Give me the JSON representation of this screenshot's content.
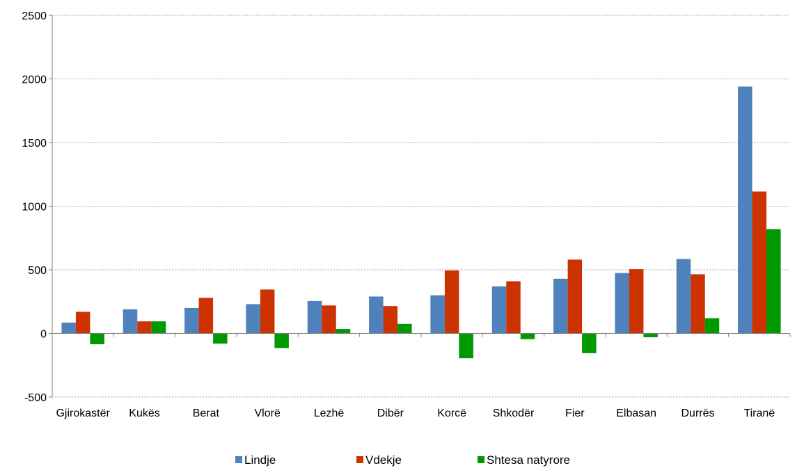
{
  "chart_data": {
    "type": "bar",
    "categories": [
      "Gjirokastër",
      "Kukës",
      "Berat",
      "Vlorë",
      "Lezhë",
      "Dibër",
      "Korcë",
      "Shkodër",
      "Fier",
      "Elbasan",
      "Durrës",
      "Tiranë"
    ],
    "series": [
      {
        "name": "Lindje",
        "color": "#4f81bd",
        "values": [
          85,
          190,
          200,
          230,
          255,
          290,
          300,
          370,
          430,
          475,
          585,
          1940
        ]
      },
      {
        "name": "Vdekje",
        "color": "#cc3300",
        "values": [
          170,
          95,
          280,
          345,
          220,
          215,
          495,
          410,
          580,
          505,
          465,
          1115
        ]
      },
      {
        "name": "Shtesa natyrore",
        "color": "#009900",
        "values": [
          -85,
          95,
          -80,
          -115,
          35,
          75,
          -195,
          -45,
          -155,
          -30,
          120,
          820
        ]
      }
    ],
    "title": "",
    "xlabel": "",
    "ylabel": "",
    "ylim": [
      -500,
      2500
    ],
    "yticks": [
      -500,
      0,
      500,
      1000,
      1500,
      2000,
      2500
    ],
    "ytick_labels": [
      "-500",
      "0",
      "500",
      "1000",
      "1500",
      "2000",
      "2500"
    ],
    "grid": true,
    "legend_position": "bottom"
  }
}
